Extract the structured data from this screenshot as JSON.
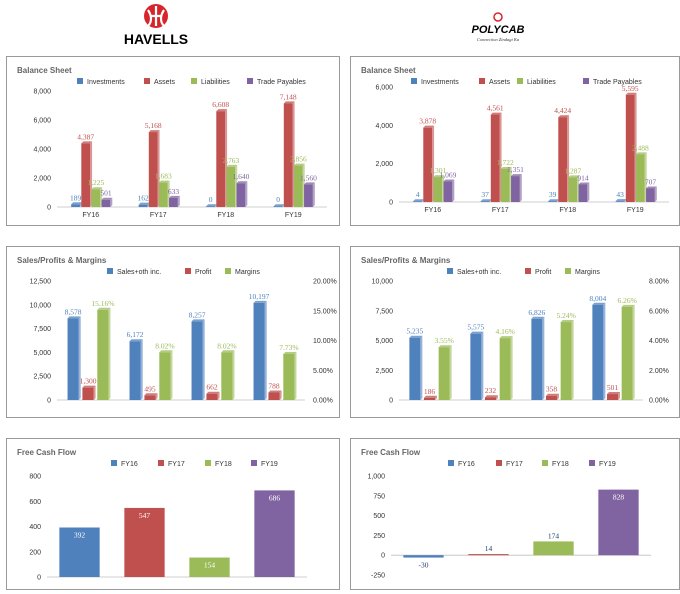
{
  "logos": {
    "left": {
      "text": "HAVELLS",
      "color": "#d7262b"
    },
    "right": {
      "text": "POLYCAB",
      "tagline": "Connection Zindagi Ka",
      "color": "#d7262b"
    }
  },
  "colors": {
    "blue": "#4f81bd",
    "red": "#c0504d",
    "green": "#9bbb59",
    "purple": "#8064a2"
  },
  "panels": [
    {
      "id": "havells-balance",
      "box": [
        6,
        56,
        334,
        170
      ],
      "chart_data": {
        "type": "bar",
        "title": "Balance Sheet",
        "categories": [
          "FY16",
          "FY17",
          "FY18",
          "FY19"
        ],
        "series": [
          {
            "name": "Investments",
            "color": "blue",
            "values": [
              189,
              162,
              0,
              0
            ]
          },
          {
            "name": "Assets",
            "color": "red",
            "values": [
              4387,
              5168,
              6608,
              7148
            ]
          },
          {
            "name": "Liabilities",
            "color": "green",
            "values": [
              1225,
              1683,
              2763,
              2856
            ]
          },
          {
            "name": "Trade Payables",
            "color": "purple",
            "values": [
              501,
              633,
              1640,
              1560
            ]
          }
        ],
        "ylim": [
          0,
          8000
        ],
        "yticks": [
          0,
          2000,
          4000,
          6000,
          8000
        ],
        "ytick_labels": [
          "0",
          "2,000",
          "4,000",
          "6,000",
          "8,000"
        ],
        "data_labels": [
          [
            "189",
            "162",
            "0",
            "0"
          ],
          [
            "4,387",
            "5,168",
            "6,608",
            "7,148"
          ],
          [
            "1,225",
            "1,683",
            "2,763",
            "2,856"
          ],
          [
            "501",
            "633",
            "1,640",
            "1,560"
          ]
        ],
        "legend": "top"
      }
    },
    {
      "id": "polycab-balance",
      "box": [
        350,
        56,
        330,
        170
      ],
      "chart_data": {
        "type": "bar",
        "title": "Balance Sheet",
        "categories": [
          "FY16",
          "FY17",
          "FY18",
          "FY19"
        ],
        "series": [
          {
            "name": "Investments",
            "color": "blue",
            "values": [
              4,
              37,
              39,
              43
            ]
          },
          {
            "name": "Assets",
            "color": "red",
            "values": [
              3878,
              4561,
              4424,
              5595
            ]
          },
          {
            "name": "Liabilities",
            "color": "green",
            "values": [
              1301,
              1722,
              1287,
              2488
            ]
          },
          {
            "name": "Trade Payables",
            "color": "purple",
            "values": [
              1069,
              1351,
              914,
              707
            ]
          }
        ],
        "ylim": [
          0,
          6000
        ],
        "yticks": [
          0,
          2000,
          4000,
          6000
        ],
        "ytick_labels": [
          "0",
          "2,000",
          "4,000",
          "6,000"
        ],
        "data_labels": [
          [
            "4",
            "37",
            "39",
            "43"
          ],
          [
            "3,878",
            "4,561",
            "4,424",
            "5,595"
          ],
          [
            "1,301",
            "1,722",
            "1,287",
            "2,488"
          ],
          [
            "1,069",
            "1,351",
            "914",
            "707"
          ]
        ],
        "legend": "top"
      }
    },
    {
      "id": "havells-sales",
      "box": [
        6,
        246,
        334,
        172
      ],
      "chart_data": {
        "type": "bar",
        "title": "Sales/Profits & Margins",
        "categories": [
          "FY16",
          "FY17",
          "FY18",
          "FY19"
        ],
        "series": [
          {
            "name": "Sales+oth inc.",
            "color": "blue",
            "values": [
              8578,
              6172,
              8257,
              10197
            ],
            "axis": "left"
          },
          {
            "name": "Profit",
            "color": "red",
            "values": [
              1300,
              495,
              662,
              788
            ],
            "axis": "left"
          },
          {
            "name": "Margins",
            "color": "green",
            "values": [
              15.16,
              8.02,
              8.02,
              7.73
            ],
            "axis": "right"
          }
        ],
        "ylim": [
          0,
          12500
        ],
        "yticks": [
          0,
          2500,
          5000,
          7500,
          10000,
          12500
        ],
        "ytick_labels": [
          "0",
          "2,500",
          "5,000",
          "7,500",
          "10,000",
          "12,500"
        ],
        "y2lim": [
          0,
          20
        ],
        "y2ticks": [
          0,
          5,
          10,
          15,
          20
        ],
        "y2tick_labels": [
          "0.00%",
          "5.00%",
          "10.00%",
          "15.00%",
          "20.00%"
        ],
        "data_labels": [
          [
            "8,578",
            "6,172",
            "8,257",
            "10,197"
          ],
          [
            "1,300",
            "495",
            "662",
            "788"
          ],
          [
            "15.16%",
            "8.02%",
            "8.02%",
            "7.73%"
          ]
        ],
        "legend": "top"
      }
    },
    {
      "id": "polycab-sales",
      "box": [
        350,
        246,
        330,
        172
      ],
      "chart_data": {
        "type": "bar",
        "title": "Sales/Profits & Margins",
        "categories": [
          "FY16",
          "FY17",
          "FY18",
          "FY19"
        ],
        "series": [
          {
            "name": "Sales+oth inc.",
            "color": "blue",
            "values": [
              5235,
              5575,
              6826,
              8004
            ],
            "axis": "left"
          },
          {
            "name": "Profit",
            "color": "red",
            "values": [
              186,
              232,
              358,
              501
            ],
            "axis": "left"
          },
          {
            "name": "Margins",
            "color": "green",
            "values": [
              3.55,
              4.16,
              5.24,
              6.26
            ],
            "axis": "right"
          }
        ],
        "ylim": [
          0,
          10000
        ],
        "yticks": [
          0,
          2500,
          5000,
          7500,
          10000
        ],
        "ytick_labels": [
          "0",
          "2,500",
          "5,000",
          "7,500",
          "10,000"
        ],
        "y2lim": [
          0,
          8
        ],
        "y2ticks": [
          0,
          2,
          4,
          6,
          8
        ],
        "y2tick_labels": [
          "0.00%",
          "2.00%",
          "4.00%",
          "6.00%",
          "8.00%"
        ],
        "data_labels": [
          [
            "5,235",
            "5,575",
            "6,826",
            "8,004"
          ],
          [
            "186",
            "232",
            "358",
            "501"
          ],
          [
            "3.55%",
            "4.16%",
            "5.24%",
            "6.26%"
          ]
        ],
        "legend": "top"
      }
    },
    {
      "id": "havells-fcf",
      "box": [
        6,
        438,
        334,
        152
      ],
      "chart_data": {
        "type": "bar",
        "title": "Free Cash Flow",
        "categories": [
          "FY16",
          "FY17",
          "FY18",
          "FY19"
        ],
        "series": [
          {
            "name": "FY16",
            "color": "blue",
            "value": 392
          },
          {
            "name": "FY17",
            "color": "red",
            "value": 547
          },
          {
            "name": "FY18",
            "color": "green",
            "value": 154
          },
          {
            "name": "FY19",
            "color": "purple",
            "value": 686
          }
        ],
        "ylim": [
          0,
          800
        ],
        "yticks": [
          0,
          200,
          400,
          600,
          800
        ],
        "ytick_labels": [
          "0",
          "200",
          "400",
          "600",
          "800"
        ],
        "data_labels": [
          "392",
          "547",
          "154",
          "686"
        ],
        "legend": "top"
      }
    },
    {
      "id": "polycab-fcf",
      "box": [
        350,
        438,
        330,
        152
      ],
      "chart_data": {
        "type": "bar",
        "title": "Free Cash Flow",
        "categories": [
          "FY16",
          "FY17",
          "FY18",
          "FY19"
        ],
        "series": [
          {
            "name": "FY16",
            "color": "blue",
            "value": -30
          },
          {
            "name": "FY17",
            "color": "red",
            "value": 14
          },
          {
            "name": "FY18",
            "color": "green",
            "value": 174
          },
          {
            "name": "FY19",
            "color": "purple",
            "value": 828
          }
        ],
        "ylim": [
          -250,
          1000
        ],
        "yticks": [
          -250,
          0,
          250,
          500,
          750,
          1000
        ],
        "ytick_labels": [
          "-250",
          "0",
          "250",
          "500",
          "750",
          "1,000"
        ],
        "data_labels": [
          "-30",
          "14",
          "174",
          "828"
        ],
        "legend": "top"
      }
    }
  ]
}
